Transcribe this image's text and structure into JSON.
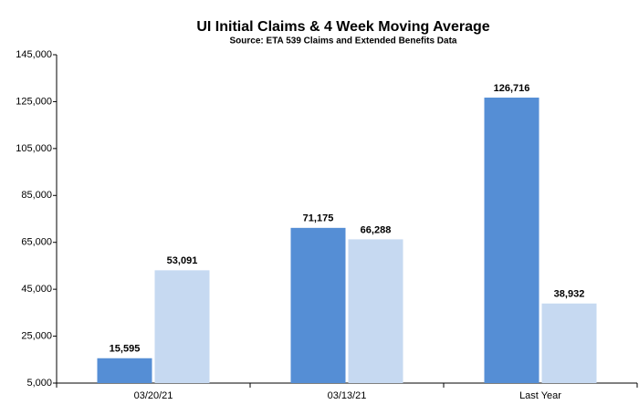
{
  "chart_data": {
    "type": "bar",
    "title": "UI Initial Claims &  4 Week Moving Average",
    "subtitle": "Source: ETA 539 Claims and Extended Benefits Data",
    "categories": [
      "03/20/21",
      "03/13/21",
      "Last Year"
    ],
    "series": [
      {
        "color": "#558ed5",
        "values": [
          15595,
          71175,
          126716
        ],
        "value_labels": [
          "15,595",
          "71,175",
          "126,716"
        ]
      },
      {
        "color": "#c6d9f1",
        "values": [
          53091,
          66288,
          38932
        ],
        "value_labels": [
          "53,091",
          "66,288",
          "38,932"
        ]
      }
    ],
    "ylim": [
      5000,
      145000
    ],
    "yticks": [
      {
        "value": 5000,
        "label": "5,000"
      },
      {
        "value": 25000,
        "label": "25,000"
      },
      {
        "value": 45000,
        "label": "45,000"
      },
      {
        "value": 65000,
        "label": "65,000"
      },
      {
        "value": 85000,
        "label": "85,000"
      },
      {
        "value": 105000,
        "label": "105,000"
      },
      {
        "value": 125000,
        "label": "125,000"
      },
      {
        "value": 145000,
        "label": "145,000"
      }
    ],
    "grid": false
  }
}
